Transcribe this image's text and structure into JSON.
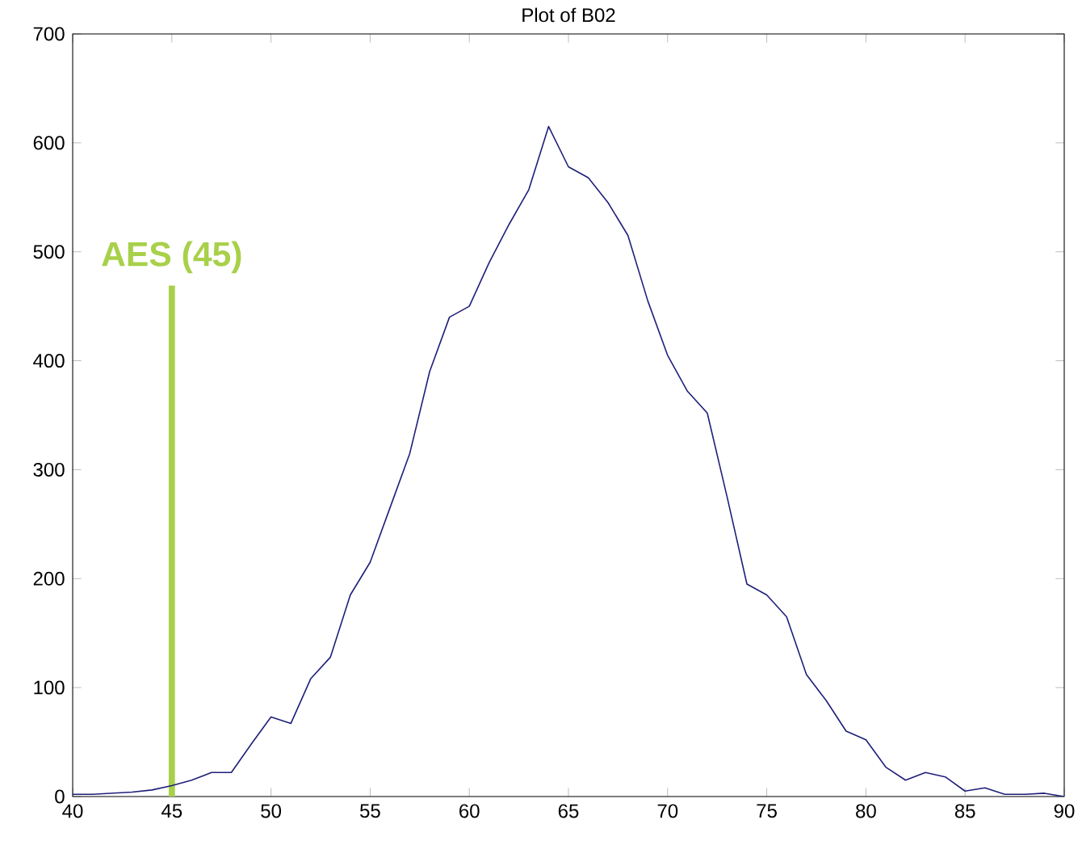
{
  "chart_data": {
    "type": "line",
    "title": "Plot of B02",
    "x": [
      40,
      41,
      42,
      43,
      44,
      45,
      46,
      47,
      48,
      49,
      50,
      51,
      52,
      53,
      54,
      55,
      56,
      57,
      58,
      59,
      60,
      61,
      62,
      63,
      64,
      65,
      66,
      67,
      68,
      69,
      70,
      71,
      72,
      73,
      74,
      75,
      76,
      77,
      78,
      79,
      80,
      81,
      82,
      83,
      84,
      85,
      86,
      87,
      88,
      89,
      90
    ],
    "series": [
      {
        "color": "#1f1f7a",
        "values": [
          2,
          2,
          3,
          4,
          6,
          10,
          15,
          22,
          22,
          48,
          73,
          67,
          108,
          128,
          185,
          215,
          265,
          315,
          390,
          440,
          450,
          490,
          525,
          557,
          615,
          578,
          568,
          545,
          515,
          455,
          405,
          372,
          352,
          275,
          195,
          185,
          165,
          112,
          88,
          60,
          52,
          27,
          15,
          22,
          18,
          5,
          8,
          2,
          2,
          3,
          0
        ]
      }
    ],
    "xlim": [
      40,
      90
    ],
    "xticks": [
      40,
      45,
      50,
      55,
      60,
      65,
      70,
      75,
      80,
      85,
      90
    ],
    "ylim": [
      0,
      700
    ],
    "yticks": [
      0,
      100,
      200,
      300,
      400,
      500,
      600,
      700
    ],
    "grid": false,
    "marker": "none",
    "line_style": "solid",
    "ref_lines": [
      {
        "axis": "x",
        "value": 45,
        "label": "AES (45)",
        "color": "#a8d04a"
      }
    ]
  }
}
